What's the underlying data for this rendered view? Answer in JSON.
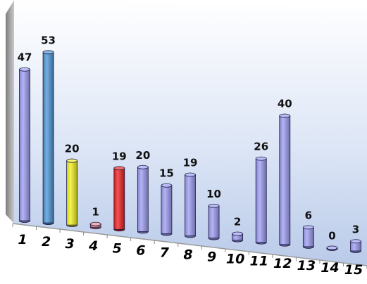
{
  "chart_data": {
    "type": "bar",
    "categories": [
      "1",
      "2",
      "3",
      "4",
      "5",
      "6",
      "7",
      "8",
      "9",
      "10",
      "11",
      "12",
      "13",
      "14",
      "15"
    ],
    "values": [
      47,
      53,
      20,
      1,
      19,
      20,
      15,
      19,
      10,
      2,
      26,
      40,
      6,
      0,
      3
    ],
    "bar_colors": [
      "#9b9bf2",
      "#4a94d6",
      "#f2f21a",
      "#e8878a",
      "#ee1c1c",
      "#9b9bf2",
      "#9b9bf2",
      "#9b9bf2",
      "#9b9bf2",
      "#9b9bf2",
      "#9b9bf2",
      "#9b9bf2",
      "#9b9bf2",
      "#9b9bf2",
      "#9b9bf2"
    ],
    "style": "3d-cylinder",
    "grid": false,
    "legend": "none",
    "ylim": [
      0,
      53
    ]
  }
}
